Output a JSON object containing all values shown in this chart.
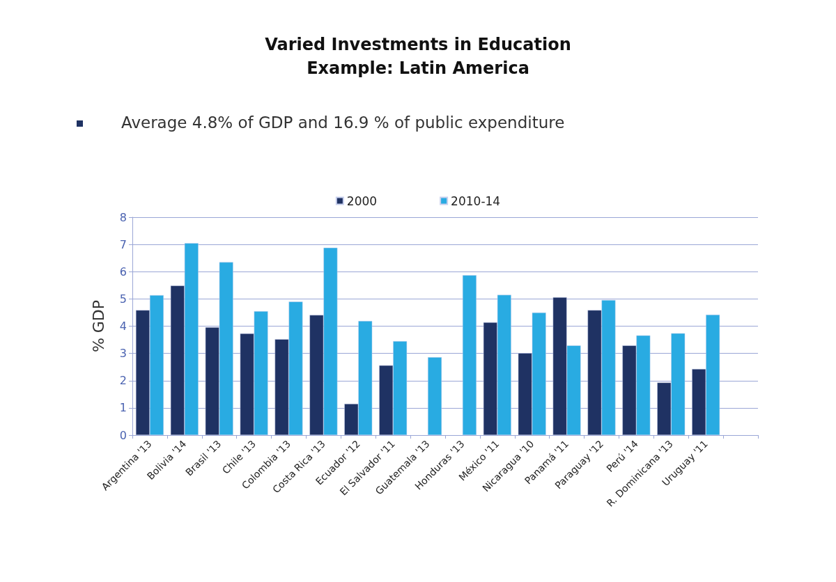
{
  "chart_data": {
    "type": "bar",
    "title": "Varied Investments in Education\nExample: Latin America",
    "subtitle": "Average 4.8% of GDP and 16.9 % of public expenditure",
    "ylabel": "% GDP",
    "categories": [
      "Argentina '13",
      "Bolivia '14",
      "Brasil '13",
      "Chile '13",
      "Colombia '13",
      "Costa Rica '13",
      "Ecuador '12",
      "El Salvador '11",
      "Guatemala '13",
      "Honduras '13",
      "México '11",
      "Nicaragua '10",
      "Panamá '11",
      "Paraguay '12",
      "Perú '14",
      "R. Dominicana '13",
      "Uruguay '11",
      null
    ],
    "series": [
      {
        "name": "2000",
        "color": "#1f3263",
        "values": [
          4.59,
          5.49,
          3.96,
          3.73,
          3.52,
          4.41,
          1.15,
          2.56,
          null,
          null,
          4.14,
          3.01,
          5.06,
          4.59,
          3.29,
          1.93,
          2.43,
          null
        ]
      },
      {
        "name": "2010-14",
        "color": "#29abe2",
        "values": [
          5.14,
          7.05,
          6.35,
          4.55,
          4.9,
          6.88,
          4.19,
          3.45,
          2.86,
          5.87,
          5.15,
          4.5,
          3.29,
          4.96,
          3.66,
          3.74,
          4.42,
          null
        ]
      }
    ],
    "ylim": [
      0,
      8
    ],
    "yticks": [
      0,
      1,
      2,
      3,
      4,
      5,
      6,
      7,
      8
    ],
    "grid": "y",
    "legend": "top"
  }
}
